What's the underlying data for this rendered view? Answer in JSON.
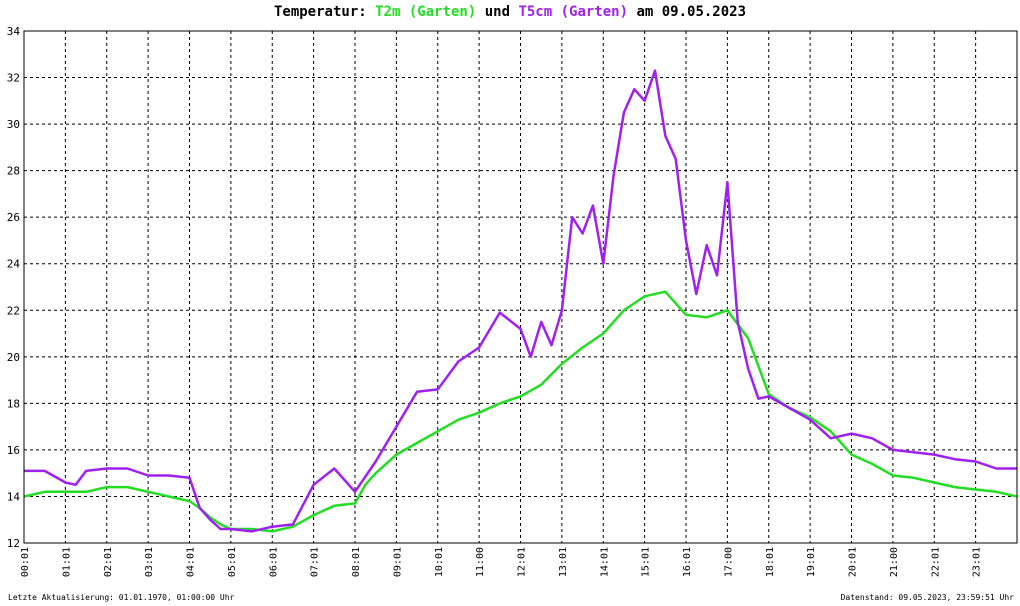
{
  "title": {
    "prefix": "Temperatur: ",
    "series1": "T2m (Garten)",
    "middle": " und ",
    "series2": "T5cm (Garten)",
    "suffix": " am 09.05.2023"
  },
  "footer": {
    "left": "Letzte Aktualisierung: 01.01.1970, 01:00:00 Uhr",
    "right": "Datenstand: 09.05.2023, 23:59:51 Uhr"
  },
  "colors": {
    "t2m": "#22dd22",
    "t5cm": "#a020f0",
    "grid": "#000000"
  },
  "chart_data": {
    "type": "line",
    "title": "Temperatur: T2m (Garten) und T5cm (Garten) am 09.05.2023",
    "xlabel": "",
    "ylabel": "",
    "xlim": [
      0,
      24
    ],
    "ylim": [
      12,
      34
    ],
    "grid": true,
    "x_ticks": [
      "00:01",
      "01:01",
      "02:01",
      "03:01",
      "04:01",
      "05:01",
      "06:01",
      "07:01",
      "08:01",
      "09:01",
      "10:01",
      "11:00",
      "12:01",
      "13:01",
      "14:01",
      "15:01",
      "16:01",
      "17:00",
      "18:01",
      "19:01",
      "20:01",
      "21:00",
      "22:01",
      "23:01"
    ],
    "y_ticks": [
      "12",
      "14",
      "16",
      "18",
      "20",
      "22",
      "24",
      "26",
      "28",
      "30",
      "32",
      "34"
    ],
    "series": [
      {
        "name": "T2m (Garten)",
        "color": "#22dd22",
        "x": [
          0,
          0.5,
          1,
          1.5,
          2,
          2.5,
          3,
          3.5,
          4,
          4.25,
          4.5,
          4.75,
          5,
          5.5,
          6,
          6.5,
          7,
          7.5,
          8,
          8.25,
          8.5,
          9,
          9.5,
          10,
          10.5,
          11,
          11.5,
          12,
          12.5,
          13,
          13.5,
          14,
          14.5,
          15,
          15.5,
          16,
          16.5,
          17,
          17.5,
          18,
          18.5,
          19,
          19.5,
          20,
          20.5,
          21,
          21.5,
          22,
          22.5,
          23,
          23.5,
          24
        ],
        "y": [
          14.0,
          14.2,
          14.2,
          14.2,
          14.4,
          14.4,
          14.2,
          14.0,
          13.8,
          13.5,
          13.1,
          12.8,
          12.6,
          12.6,
          12.5,
          12.7,
          13.2,
          13.6,
          13.7,
          14.5,
          15.0,
          15.8,
          16.3,
          16.8,
          17.3,
          17.6,
          18.0,
          18.3,
          18.8,
          19.7,
          20.4,
          21.0,
          22.0,
          22.6,
          22.8,
          21.8,
          21.7,
          22.0,
          20.8,
          18.4,
          17.8,
          17.4,
          16.8,
          15.8,
          15.4,
          14.9,
          14.8,
          14.6,
          14.4,
          14.3,
          14.2,
          14.0
        ]
      },
      {
        "name": "T5cm (Garten)",
        "color": "#a020f0",
        "x": [
          0,
          0.5,
          1,
          1.25,
          1.5,
          2,
          2.5,
          3,
          3.5,
          4,
          4.25,
          4.5,
          4.75,
          5,
          5.5,
          6,
          6.5,
          7,
          7.5,
          8,
          8.5,
          9,
          9.5,
          10,
          10.5,
          11,
          11.5,
          12,
          12.25,
          12.5,
          12.75,
          13,
          13.25,
          13.5,
          13.75,
          14,
          14.25,
          14.5,
          14.75,
          15,
          15.25,
          15.5,
          15.75,
          16,
          16.25,
          16.5,
          16.75,
          17,
          17.25,
          17.5,
          17.75,
          18,
          18.5,
          19,
          19.5,
          20,
          20.5,
          21,
          21.5,
          22,
          22.5,
          23,
          23.5,
          24
        ],
        "y": [
          15.1,
          15.1,
          14.6,
          14.5,
          15.1,
          15.2,
          15.2,
          14.9,
          14.9,
          14.8,
          13.5,
          13.0,
          12.6,
          12.6,
          12.5,
          12.7,
          12.8,
          14.5,
          15.2,
          14.2,
          15.5,
          17.0,
          18.5,
          18.6,
          19.8,
          20.4,
          21.9,
          21.2,
          20.0,
          21.5,
          20.5,
          22.0,
          26.0,
          25.3,
          26.5,
          24.0,
          27.8,
          30.5,
          31.5,
          31.0,
          32.3,
          29.5,
          28.5,
          25.0,
          22.7,
          24.8,
          23.5,
          27.5,
          21.5,
          19.5,
          18.2,
          18.3,
          17.8,
          17.3,
          16.5,
          16.7,
          16.5,
          16.0,
          15.9,
          15.8,
          15.6,
          15.5,
          15.2,
          15.2
        ]
      }
    ]
  }
}
